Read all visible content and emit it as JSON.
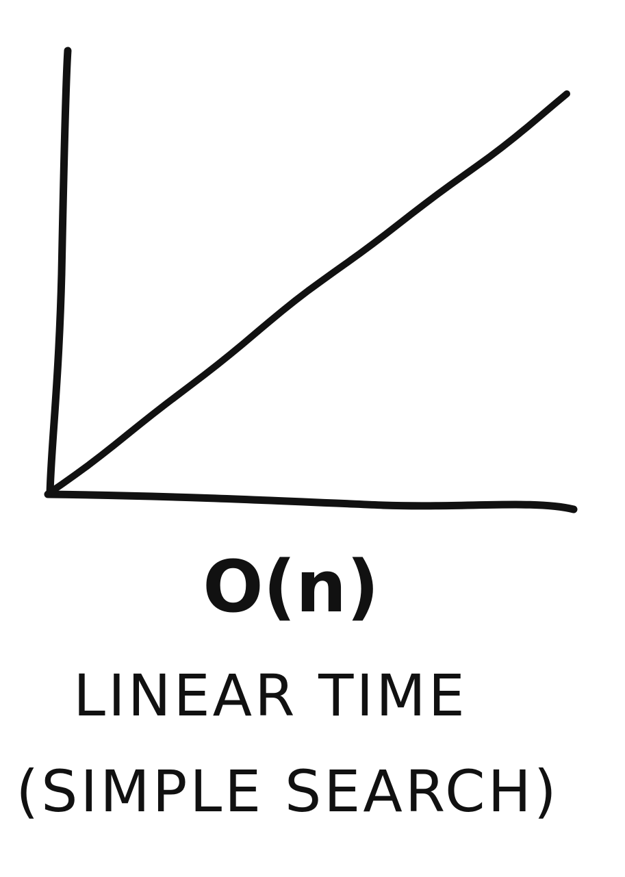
{
  "chart_data": {
    "type": "line",
    "title": "O(n)",
    "subtitle": "LINEAR TIME",
    "caption": "(SIMPLE SEARCH)",
    "xlabel": "",
    "ylabel": "",
    "grid": false,
    "xlim": [
      0,
      1
    ],
    "ylim": [
      0,
      1
    ],
    "series": [
      {
        "x": [
          0,
          1
        ],
        "y": [
          0,
          1
        ]
      }
    ],
    "colors": {
      "ink": "#111111",
      "background": "#ffffff"
    }
  }
}
